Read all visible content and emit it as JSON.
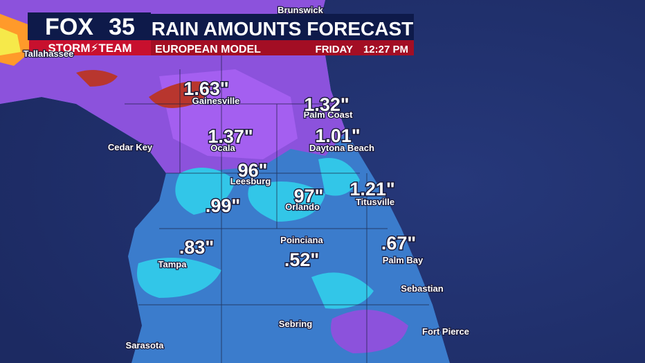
{
  "header": {
    "logo": {
      "brand": "FOX",
      "channel": "35",
      "team": "STORM⚡TEAM"
    },
    "title": "RAIN AMOUNTS FORECAST",
    "subtitle": "EUROPEAN MODEL",
    "day": "FRIDAY",
    "time": "12:27 PM"
  },
  "map": {
    "cities": [
      "Brunswick",
      "Tallahassee",
      "Gainesville",
      "Palm Coast",
      "Ocala",
      "Daytona Beach",
      "Cedar Key",
      "Leesburg",
      "Orlando",
      "Titusville",
      "Poinciana",
      "Palm Bay",
      "Tampa",
      "Sebastian",
      "Sebring",
      "Fort Pierce",
      "Sarasota"
    ],
    "amounts": [
      "1.63\"",
      "1.32\"",
      "1.37\"",
      "1.01\"",
      "96\"",
      "97\"",
      "1.21\"",
      ".99\"",
      ".83\"",
      ".52\"",
      ".67\""
    ]
  }
}
